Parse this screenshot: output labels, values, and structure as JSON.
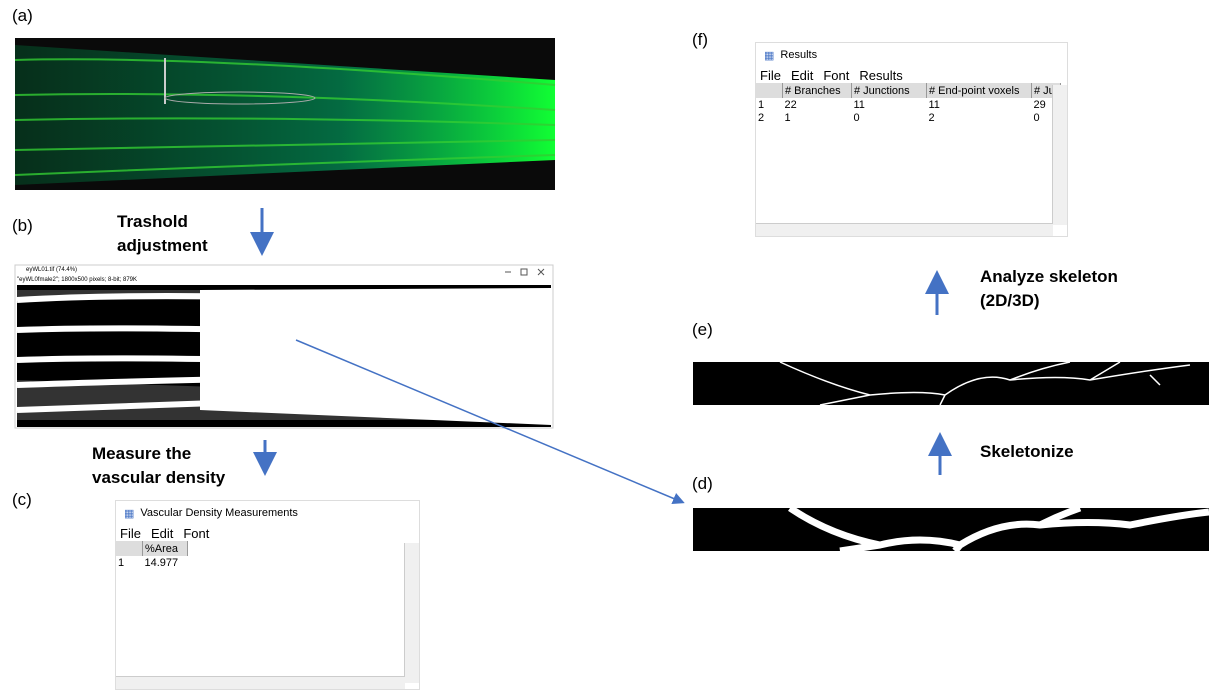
{
  "panels": {
    "a": {
      "label": "(a)"
    },
    "b": {
      "label": "(b)",
      "step": "Trashold adjustment",
      "window_title": "eyWL01.tif (74.4%)",
      "window_info": "\"eyWL0fmale2\"; 1800x500 pixels; 8-bit; 879K"
    },
    "c": {
      "label": "(c)",
      "step": "Measure the vascular density",
      "window_title": "Vascular Density Measurements",
      "menu": [
        "File",
        "Edit",
        "Font"
      ],
      "table": {
        "headers": [
          "%Area"
        ],
        "rows": [
          [
            "1",
            "14.977"
          ]
        ]
      }
    },
    "d": {
      "label": "(d)"
    },
    "e": {
      "label": "(e)",
      "step": "Skeletonize"
    },
    "f": {
      "label": "(f)",
      "step": "Analyze skeleton (2D/3D)",
      "window_title": "Results",
      "menu": [
        "File",
        "Edit",
        "Font",
        "Results"
      ],
      "table": {
        "headers": [
          "# Branches",
          "# Junctions",
          "# End-point voxels",
          "# Ju"
        ],
        "rows": [
          [
            "1",
            "22",
            "11",
            "11",
            "29"
          ],
          [
            "2",
            "1",
            "0",
            "2",
            "0"
          ]
        ]
      }
    }
  }
}
